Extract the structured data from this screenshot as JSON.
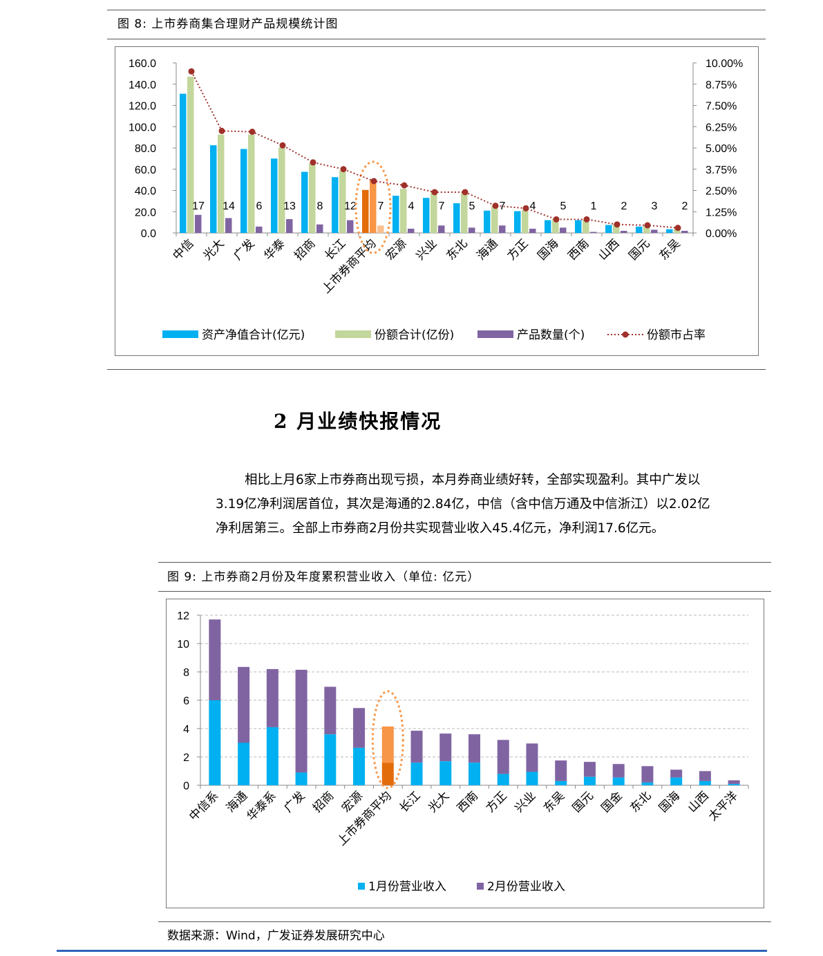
{
  "figure8": {
    "caption": "图  8:  上市券商集合理财产品规模统计图"
  },
  "figure9": {
    "caption": "图  9:  上市券商2月份及年度累积营业收入（单位:  亿元）"
  },
  "section": {
    "title": "2 月业绩快报情况"
  },
  "paragraph": {
    "line1": "相比上月6家上市券商出现亏损，本月券商业绩好转，全部实现盈利。其中广发以",
    "line2": "3.19亿净利润居首位，其次是海通的2.84亿，中信（含中信万通及中信浙江）以2.02亿",
    "line3": "净利居第三。全部上市券商2月份共实现营业收入45.4亿元，净利润17.6亿元。"
  },
  "source": "数据来源：Wind，广发证券发展研究中心",
  "colors": {
    "blue": "#00B0F0",
    "green": "#C3D69B",
    "purple": "#8064A2",
    "orange_dark": "#E36C0A",
    "orange_light": "#FABF8F",
    "orange_mid": "#F79646",
    "line": "#A0302A",
    "footer": "#2E63B8"
  },
  "chart_data": [
    {
      "type": "bar",
      "categories": [
        "中信",
        "光大",
        "广发",
        "华泰",
        "招商",
        "长江",
        "上市券商平均",
        "宏源",
        "兴业",
        "东北",
        "海通",
        "方正",
        "国海",
        "西南",
        "山西",
        "国元",
        "东吴"
      ],
      "series": [
        {
          "name": "资产净值合计(亿元)",
          "axis": "left",
          "values": [
            131,
            82.5,
            79,
            70,
            57.5,
            52.5,
            40.5,
            35,
            33,
            28,
            21,
            20.5,
            12,
            12,
            7.5,
            6,
            3.5
          ]
        },
        {
          "name": "份额合计(亿份)",
          "axis": "left",
          "values": [
            147,
            92.5,
            92.5,
            80.5,
            65.5,
            59,
            49.5,
            41.5,
            38.5,
            37.5,
            25.5,
            21.5,
            13.5,
            12.5,
            8.5,
            7,
            4
          ]
        },
        {
          "name": "产品数量(个)",
          "axis": "left",
          "values": [
            17,
            14,
            6,
            13,
            8,
            12,
            7,
            4,
            7,
            5,
            7,
            4,
            5,
            1,
            2,
            3,
            2
          ]
        },
        {
          "name": "份额市占率",
          "axis": "right",
          "type": "line",
          "values": [
            9.5,
            6.0,
            5.95,
            5.15,
            4.15,
            3.75,
            3.05,
            2.8,
            2.4,
            2.4,
            1.6,
            1.45,
            0.8,
            0.8,
            0.5,
            0.45,
            0.3
          ]
        }
      ],
      "data_labels": [
        17,
        14,
        6,
        13,
        8,
        12,
        7,
        4,
        7,
        5,
        7,
        4,
        5,
        1,
        2,
        3,
        2
      ],
      "left_ticks": [
        "0.0",
        "20.0",
        "40.0",
        "60.0",
        "80.0",
        "100.0",
        "120.0",
        "140.0",
        "160.0"
      ],
      "right_ticks": [
        "0.00%",
        "1.25%",
        "2.50%",
        "3.75%",
        "5.00%",
        "6.25%",
        "7.50%",
        "8.75%",
        "10.00%"
      ],
      "ylim": [
        0,
        160
      ],
      "y2lim": [
        0,
        10
      ],
      "highlight_category": "上市券商平均",
      "grid": false,
      "legend_position": "bottom"
    },
    {
      "type": "bar",
      "stacked": true,
      "categories": [
        "中信系",
        "海通",
        "华泰系",
        "广发",
        "招商",
        "宏源",
        "上市券商平均",
        "长江",
        "光大",
        "西南",
        "方正",
        "兴业",
        "东吴",
        "国元",
        "国金",
        "东北",
        "国海",
        "山西",
        "太平洋"
      ],
      "series": [
        {
          "name": "1月份营业收入",
          "values": [
            6.0,
            3.0,
            4.1,
            0.9,
            3.6,
            2.65,
            1.6,
            1.6,
            1.7,
            1.6,
            0.8,
            0.95,
            0.3,
            0.6,
            0.55,
            0.2,
            0.55,
            0.3,
            0.1
          ]
        },
        {
          "name": "2月份营业收入",
          "values": [
            5.7,
            5.35,
            4.1,
            7.25,
            3.35,
            2.8,
            2.55,
            2.25,
            1.95,
            2.0,
            2.4,
            2.0,
            1.45,
            1.05,
            0.95,
            1.15,
            0.55,
            0.7,
            0.25
          ]
        }
      ],
      "y_ticks": [
        "0",
        "2",
        "4",
        "6",
        "8",
        "10",
        "12"
      ],
      "ylim": [
        0,
        12
      ],
      "highlight_category": "上市券商平均",
      "grid": true,
      "legend_position": "bottom"
    }
  ]
}
